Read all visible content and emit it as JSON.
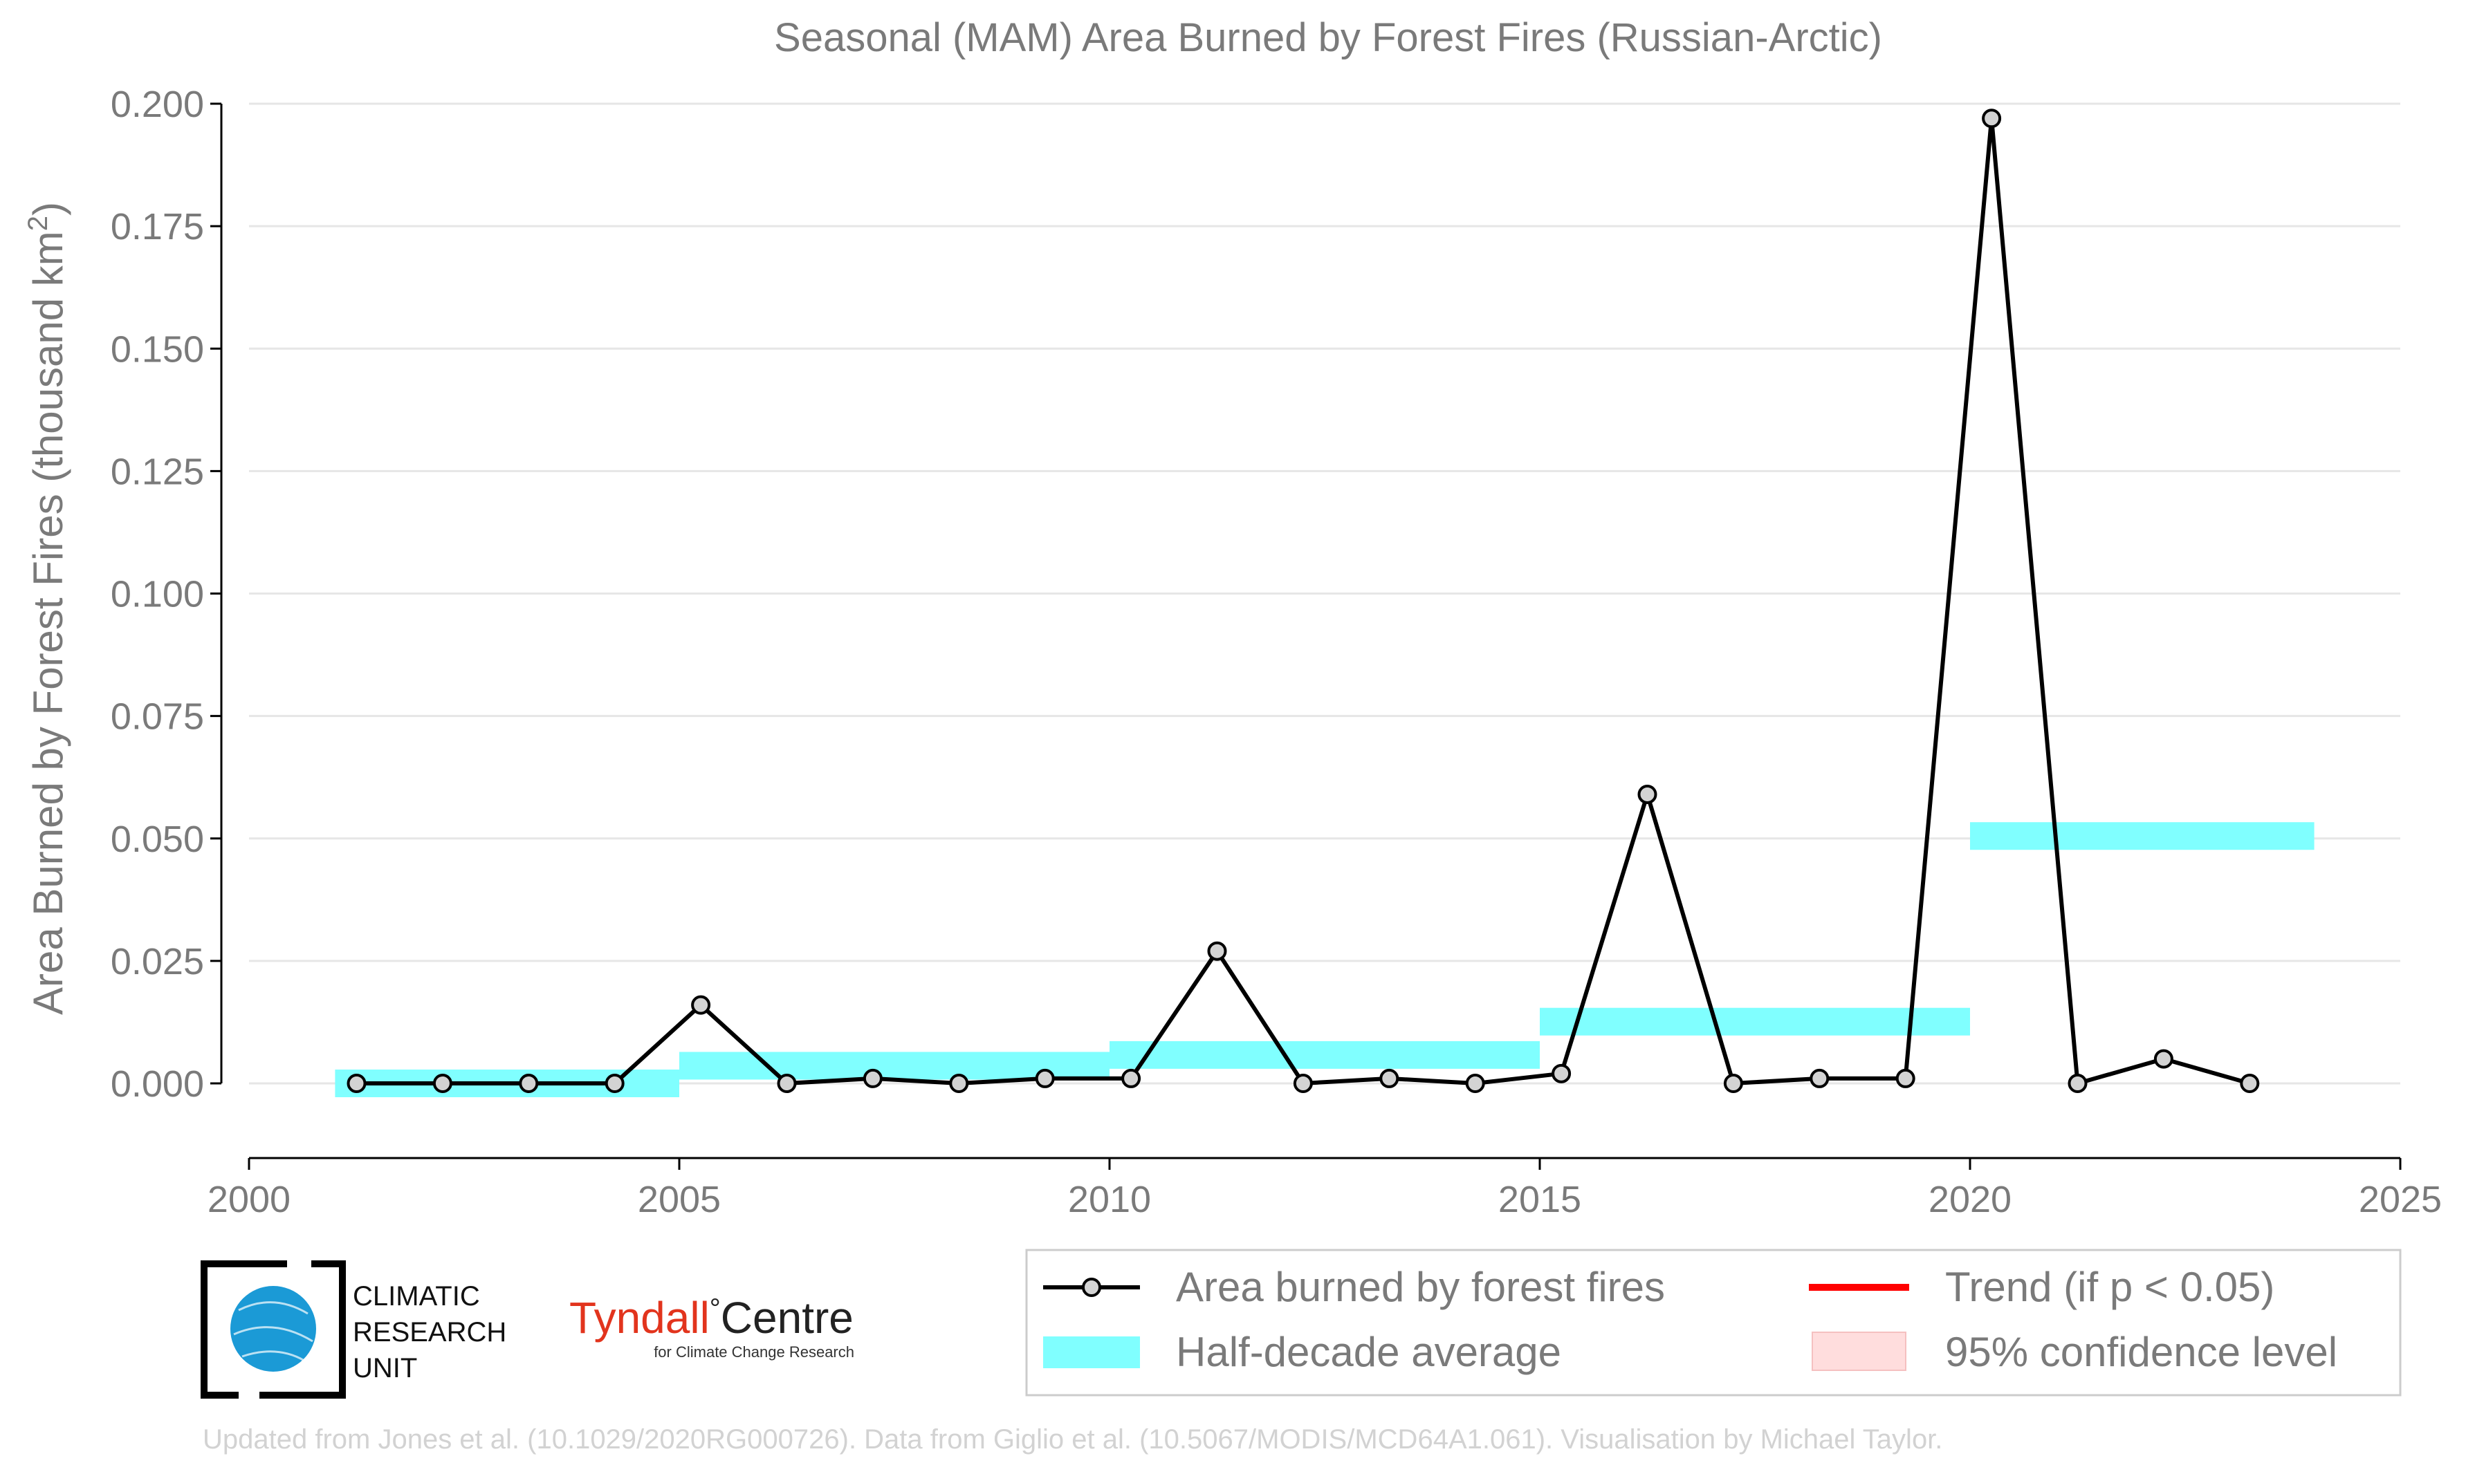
{
  "chart_data": {
    "type": "line",
    "title": "Seasonal (MAM) Area Burned by Forest Fires (Russian-Arctic)",
    "ylabel": "Area Burned by Forest Fires (thousand km",
    "ylabel_sup": "2",
    "ylabel_close": ")",
    "xlim": [
      2000,
      2025
    ],
    "ylim": [
      -0.015,
      0.2
    ],
    "x_ticks": [
      2000,
      2005,
      2010,
      2015,
      2020,
      2025
    ],
    "y_ticks": [
      0.0,
      0.025,
      0.05,
      0.075,
      0.1,
      0.125,
      0.15,
      0.175,
      0.2
    ],
    "y_tick_labels": [
      "0.000",
      "0.025",
      "0.050",
      "0.075",
      "0.100",
      "0.125",
      "0.150",
      "0.175",
      "0.200"
    ],
    "grid": "horizontal",
    "series": [
      {
        "name": "Area burned by forest fires",
        "color": "#000000",
        "marker_fill": "#d3d3d3",
        "points": [
          {
            "x": 2001.25,
            "y": 0.0
          },
          {
            "x": 2002.25,
            "y": 0.0
          },
          {
            "x": 2003.25,
            "y": 0.0
          },
          {
            "x": 2004.25,
            "y": 0.0
          },
          {
            "x": 2005.25,
            "y": 0.016
          },
          {
            "x": 2006.25,
            "y": 0.0
          },
          {
            "x": 2007.25,
            "y": 0.001
          },
          {
            "x": 2008.25,
            "y": 0.0
          },
          {
            "x": 2009.25,
            "y": 0.001
          },
          {
            "x": 2010.25,
            "y": 0.001
          },
          {
            "x": 2011.25,
            "y": 0.027
          },
          {
            "x": 2012.25,
            "y": 0.0
          },
          {
            "x": 2013.25,
            "y": 0.001
          },
          {
            "x": 2014.25,
            "y": 0.0
          },
          {
            "x": 2015.25,
            "y": 0.002
          },
          {
            "x": 2016.25,
            "y": 0.059
          },
          {
            "x": 2017.25,
            "y": 0.0
          },
          {
            "x": 2018.25,
            "y": 0.001
          },
          {
            "x": 2019.25,
            "y": 0.001
          },
          {
            "x": 2020.25,
            "y": 0.197
          },
          {
            "x": 2021.25,
            "y": 0.0
          },
          {
            "x": 2022.25,
            "y": 0.005
          },
          {
            "x": 2023.25,
            "y": 0.0
          }
        ]
      },
      {
        "name": "Half-decade average",
        "color": "#80ffff",
        "segments": [
          {
            "x0": 2001.0,
            "x1": 2005.0,
            "y": 0.0
          },
          {
            "x0": 2005.0,
            "x1": 2010.0,
            "y": 0.0036
          },
          {
            "x0": 2010.0,
            "x1": 2015.0,
            "y": 0.0058
          },
          {
            "x0": 2015.0,
            "x1": 2020.0,
            "y": 0.0126
          },
          {
            "x0": 2020.0,
            "x1": 2024.0,
            "y": 0.0505
          }
        ]
      }
    ],
    "legend": {
      "placement": "bottom-right",
      "entries": [
        {
          "label": "Area burned by forest fires",
          "kind": "line-marker",
          "color": "#000000"
        },
        {
          "label": "Trend (if p < 0.05)",
          "kind": "line",
          "color": "#ff0000"
        },
        {
          "label": "Half-decade average",
          "kind": "band",
          "color": "#80ffff"
        },
        {
          "label": "95% confidence level",
          "kind": "patch",
          "color": "#ffdddd"
        }
      ]
    }
  },
  "logos": {
    "cru_lines": [
      "CLIMATIC",
      "RESEARCH",
      "UNIT"
    ],
    "tyndall_main": "Tyndall",
    "tyndall_degree": "°",
    "tyndall_centre": "Centre",
    "tyndall_sub": "for Climate Change Research"
  },
  "credit": "Updated from Jones et al. (10.1029/2020RG000726). Data from Giglio et al. (10.5067/MODIS/MCD64A1.061). Visualisation by Michael Taylor."
}
